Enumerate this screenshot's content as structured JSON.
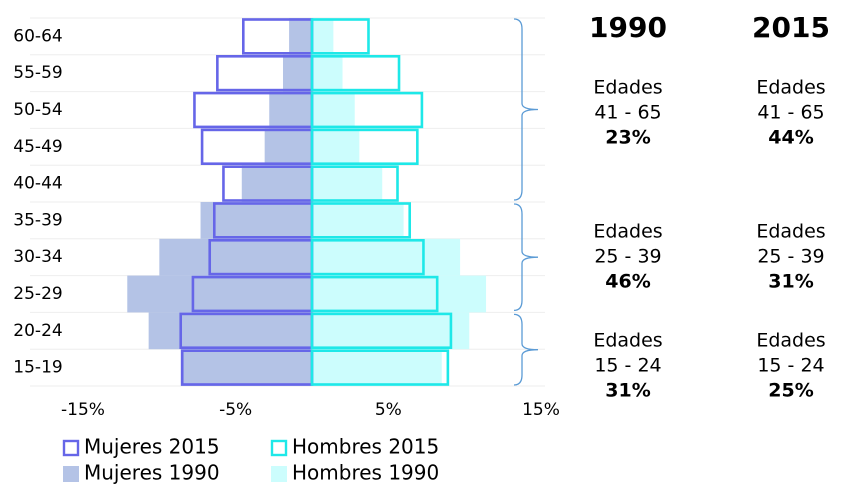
{
  "chart_data": {
    "type": "pyramid",
    "categories": [
      "60-64",
      "55-59",
      "50-54",
      "45-49",
      "40-44",
      "35-39",
      "30-34",
      "25-29",
      "20-24",
      "15-19"
    ],
    "series": [
      {
        "name": "Mujeres 1990",
        "color": "#b4c3e6",
        "style": "fill",
        "values": [
          -1.5,
          -1.9,
          -2.8,
          -3.1,
          -4.6,
          -7.3,
          -10.0,
          -12.1,
          -10.7,
          -8.6
        ]
      },
      {
        "name": "Hombres 1990",
        "color": "#ccfdfd",
        "style": "fill",
        "values": [
          1.4,
          2.0,
          2.8,
          3.1,
          4.6,
          6.0,
          9.7,
          11.4,
          10.3,
          8.5
        ]
      },
      {
        "name": "Mujeres 2015",
        "color": "#6666e8",
        "style": "outline",
        "values": [
          -4.5,
          -6.2,
          -7.7,
          -7.2,
          -5.8,
          -6.4,
          -6.7,
          -7.8,
          -8.6,
          -8.5
        ]
      },
      {
        "name": "Hombres 2015",
        "color": "#1ee8e8",
        "style": "outline",
        "values": [
          3.7,
          5.7,
          7.2,
          6.9,
          5.6,
          6.4,
          7.3,
          8.2,
          9.1,
          8.9
        ]
      }
    ],
    "xlim": [
      -15,
      15
    ],
    "xticks": [
      {
        "value": -15,
        "label": "-15%"
      },
      {
        "value": -5,
        "label": "-5%"
      },
      {
        "value": 5,
        "label": "5%"
      },
      {
        "value": 15,
        "label": "15%"
      }
    ],
    "grid": true,
    "annotations": {
      "headers": [
        "1990",
        "2015"
      ],
      "groups": [
        {
          "label": "Edades",
          "range": "41 - 65",
          "values": [
            "23%",
            "44%"
          ]
        },
        {
          "label": "Edades",
          "range": "25 - 39",
          "values": [
            "46%",
            "31%"
          ]
        },
        {
          "label": "Edades",
          "range": "15 - 24",
          "values": [
            "31%",
            "25%"
          ]
        }
      ]
    }
  }
}
